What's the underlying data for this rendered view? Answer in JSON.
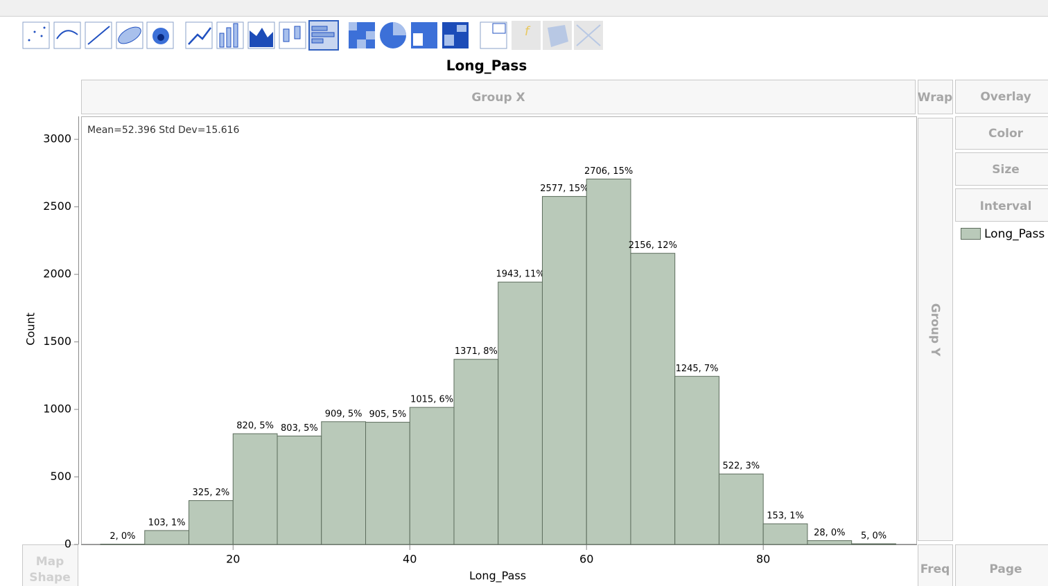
{
  "chart_data": {
    "type": "histogram",
    "title": "Long_Pass",
    "annotation": "Mean=52.396  Std Dev=15.616",
    "x_label": "Long_Pass",
    "y_label": "Count",
    "bins": [
      5,
      10,
      15,
      20,
      25,
      30,
      35,
      40,
      45,
      50,
      55,
      60,
      65,
      70,
      75,
      80,
      85,
      90,
      95
    ],
    "series": [
      {
        "name": "Long_Pass",
        "color": "#b9c9b9",
        "values": [
          2,
          103,
          325,
          820,
          803,
          909,
          905,
          1015,
          1371,
          1943,
          2577,
          2706,
          2156,
          1245,
          522,
          153,
          28,
          5
        ],
        "value_labels": [
          "2, 0%",
          "103, 1%",
          "325, 2%",
          "820, 5%",
          "803, 5%",
          "909, 5%",
          "905, 5%",
          "1015, 6%",
          "1371, 8%",
          "1943, 11%",
          "2577, 15%",
          "2706, 15%",
          "2156, 12%",
          "1245, 7%",
          "522, 3%",
          "153, 1%",
          "28, 0%",
          "5, 0%"
        ]
      }
    ],
    "xlim": [
      2.8,
      97.4
    ],
    "ylim": [
      0,
      3170
    ],
    "xticks": [
      20,
      40,
      60,
      80
    ],
    "yticks": [
      0,
      500,
      1000,
      1500,
      2000,
      2500,
      3000
    ]
  },
  "drop_zones": {
    "group_x": "Group X",
    "wrap": "Wrap",
    "overlay": "Overlay",
    "color": "Color",
    "size": "Size",
    "interval": "Interval",
    "group_y": "Group Y",
    "map_shape": [
      "Map",
      "Shape"
    ],
    "freq": "Freq",
    "page": "Page"
  }
}
